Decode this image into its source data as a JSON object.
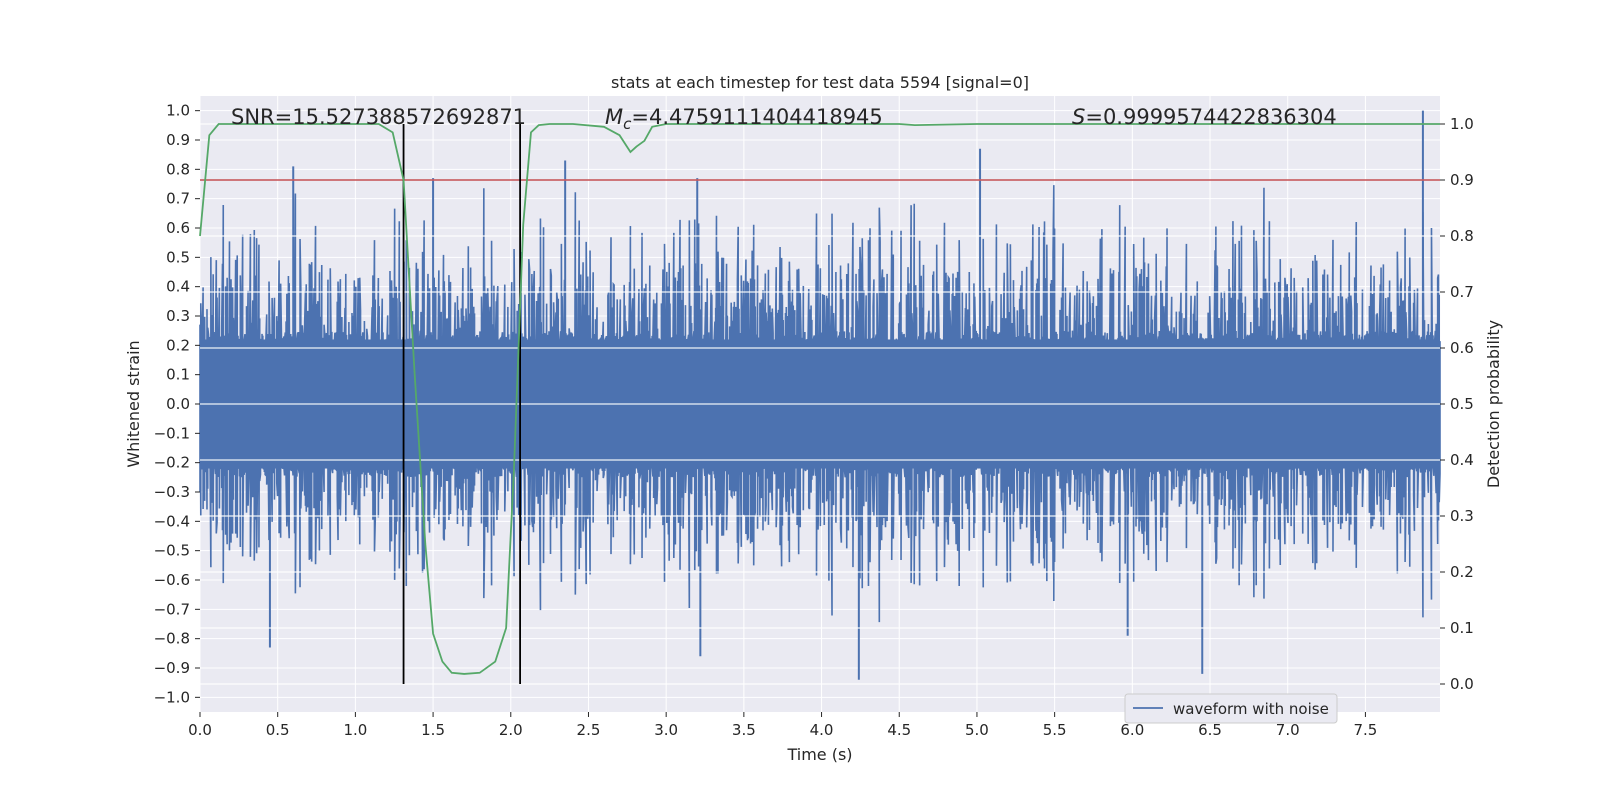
{
  "chart_data": {
    "type": "line",
    "title": "stats at each timestep for test data 5594 [signal=0]",
    "xlabel": "Time (s)",
    "ylabel": "Whitened strain",
    "y2label": "Detection probability",
    "xlim": [
      0.0,
      7.98
    ],
    "ylim": [
      -1.05,
      1.05
    ],
    "y2lim": [
      -0.05,
      1.05
    ],
    "x_ticks": [
      "0.0",
      "0.5",
      "1.0",
      "1.5",
      "2.0",
      "2.5",
      "3.0",
      "3.5",
      "4.0",
      "4.5",
      "5.0",
      "5.5",
      "6.0",
      "6.5",
      "7.0",
      "7.5"
    ],
    "y_ticks": [
      "1.0",
      "0.9",
      "0.8",
      "0.7",
      "0.6",
      "0.5",
      "0.4",
      "0.3",
      "0.2",
      "0.1",
      "0.0",
      "−0.1",
      "−0.2",
      "−0.3",
      "−0.4",
      "−0.5",
      "−0.6",
      "−0.7",
      "−0.8",
      "−0.9",
      "−1.0"
    ],
    "y2_ticks": [
      "1.0",
      "0.9",
      "0.8",
      "0.7",
      "0.6",
      "0.5",
      "0.4",
      "0.3",
      "0.2",
      "0.1",
      "0.0"
    ],
    "grid": true,
    "legend": {
      "placement": "lower-right",
      "entries": [
        "waveform with noise"
      ]
    },
    "annotations": {
      "snr": "SNR=15.527388572692871",
      "mc_symbol": "M",
      "mc_sub": "c",
      "mc_value": "=4.4759111404418945",
      "s_symbol": "S",
      "s_value": "=0.9999574422836304"
    },
    "threshold": {
      "y2": 0.9,
      "color": "#c44e52"
    },
    "vlines": {
      "x": [
        1.31,
        2.06
      ],
      "y2_range": [
        0.0,
        1.0
      ],
      "color": "#000000"
    },
    "series": [
      {
        "name": "waveform with noise",
        "kind": "waveform",
        "color": "#4c72b0",
        "core_amplitude": 0.22,
        "typical_peak_amplitude": 0.45,
        "max_value": 1.0,
        "min_value": -0.94,
        "notable_peaks": [
          {
            "x": 0.6,
            "y": 0.81
          },
          {
            "x": 1.5,
            "y": 0.77
          },
          {
            "x": 2.35,
            "y": 0.83
          },
          {
            "x": 3.2,
            "y": 0.77
          },
          {
            "x": 5.02,
            "y": 0.87
          },
          {
            "x": 7.87,
            "y": 1.0
          },
          {
            "x": 4.24,
            "y": -0.94
          },
          {
            "x": 6.45,
            "y": -0.92
          },
          {
            "x": 0.45,
            "y": -0.83
          },
          {
            "x": 3.22,
            "y": -0.86
          },
          {
            "x": 5.97,
            "y": -0.79
          }
        ]
      },
      {
        "kind": "probability",
        "axis": "y2",
        "color": "#55a868",
        "x": [
          0.0,
          0.06,
          0.12,
          0.2,
          0.4,
          0.6,
          0.8,
          1.0,
          1.15,
          1.24,
          1.31,
          1.38,
          1.45,
          1.5,
          1.56,
          1.62,
          1.7,
          1.8,
          1.9,
          1.97,
          2.02,
          2.08,
          2.13,
          2.18,
          2.25,
          2.4,
          2.6,
          2.7,
          2.77,
          2.81,
          2.86,
          2.91,
          3.0,
          3.5,
          4.0,
          4.5,
          4.6,
          5.0,
          5.5,
          6.0,
          6.5,
          7.0,
          7.5,
          7.98
        ],
        "y": [
          0.8,
          0.98,
          1.0,
          1.0,
          1.0,
          1.0,
          1.0,
          1.0,
          1.0,
          0.985,
          0.9,
          0.56,
          0.25,
          0.09,
          0.04,
          0.02,
          0.018,
          0.02,
          0.04,
          0.1,
          0.38,
          0.82,
          0.985,
          0.998,
          1.0,
          1.0,
          0.995,
          0.98,
          0.95,
          0.96,
          0.97,
          0.995,
          1.0,
          1.0,
          1.0,
          1.0,
          0.998,
          1.0,
          1.0,
          1.0,
          1.0,
          1.0,
          1.0,
          1.0
        ]
      }
    ]
  }
}
